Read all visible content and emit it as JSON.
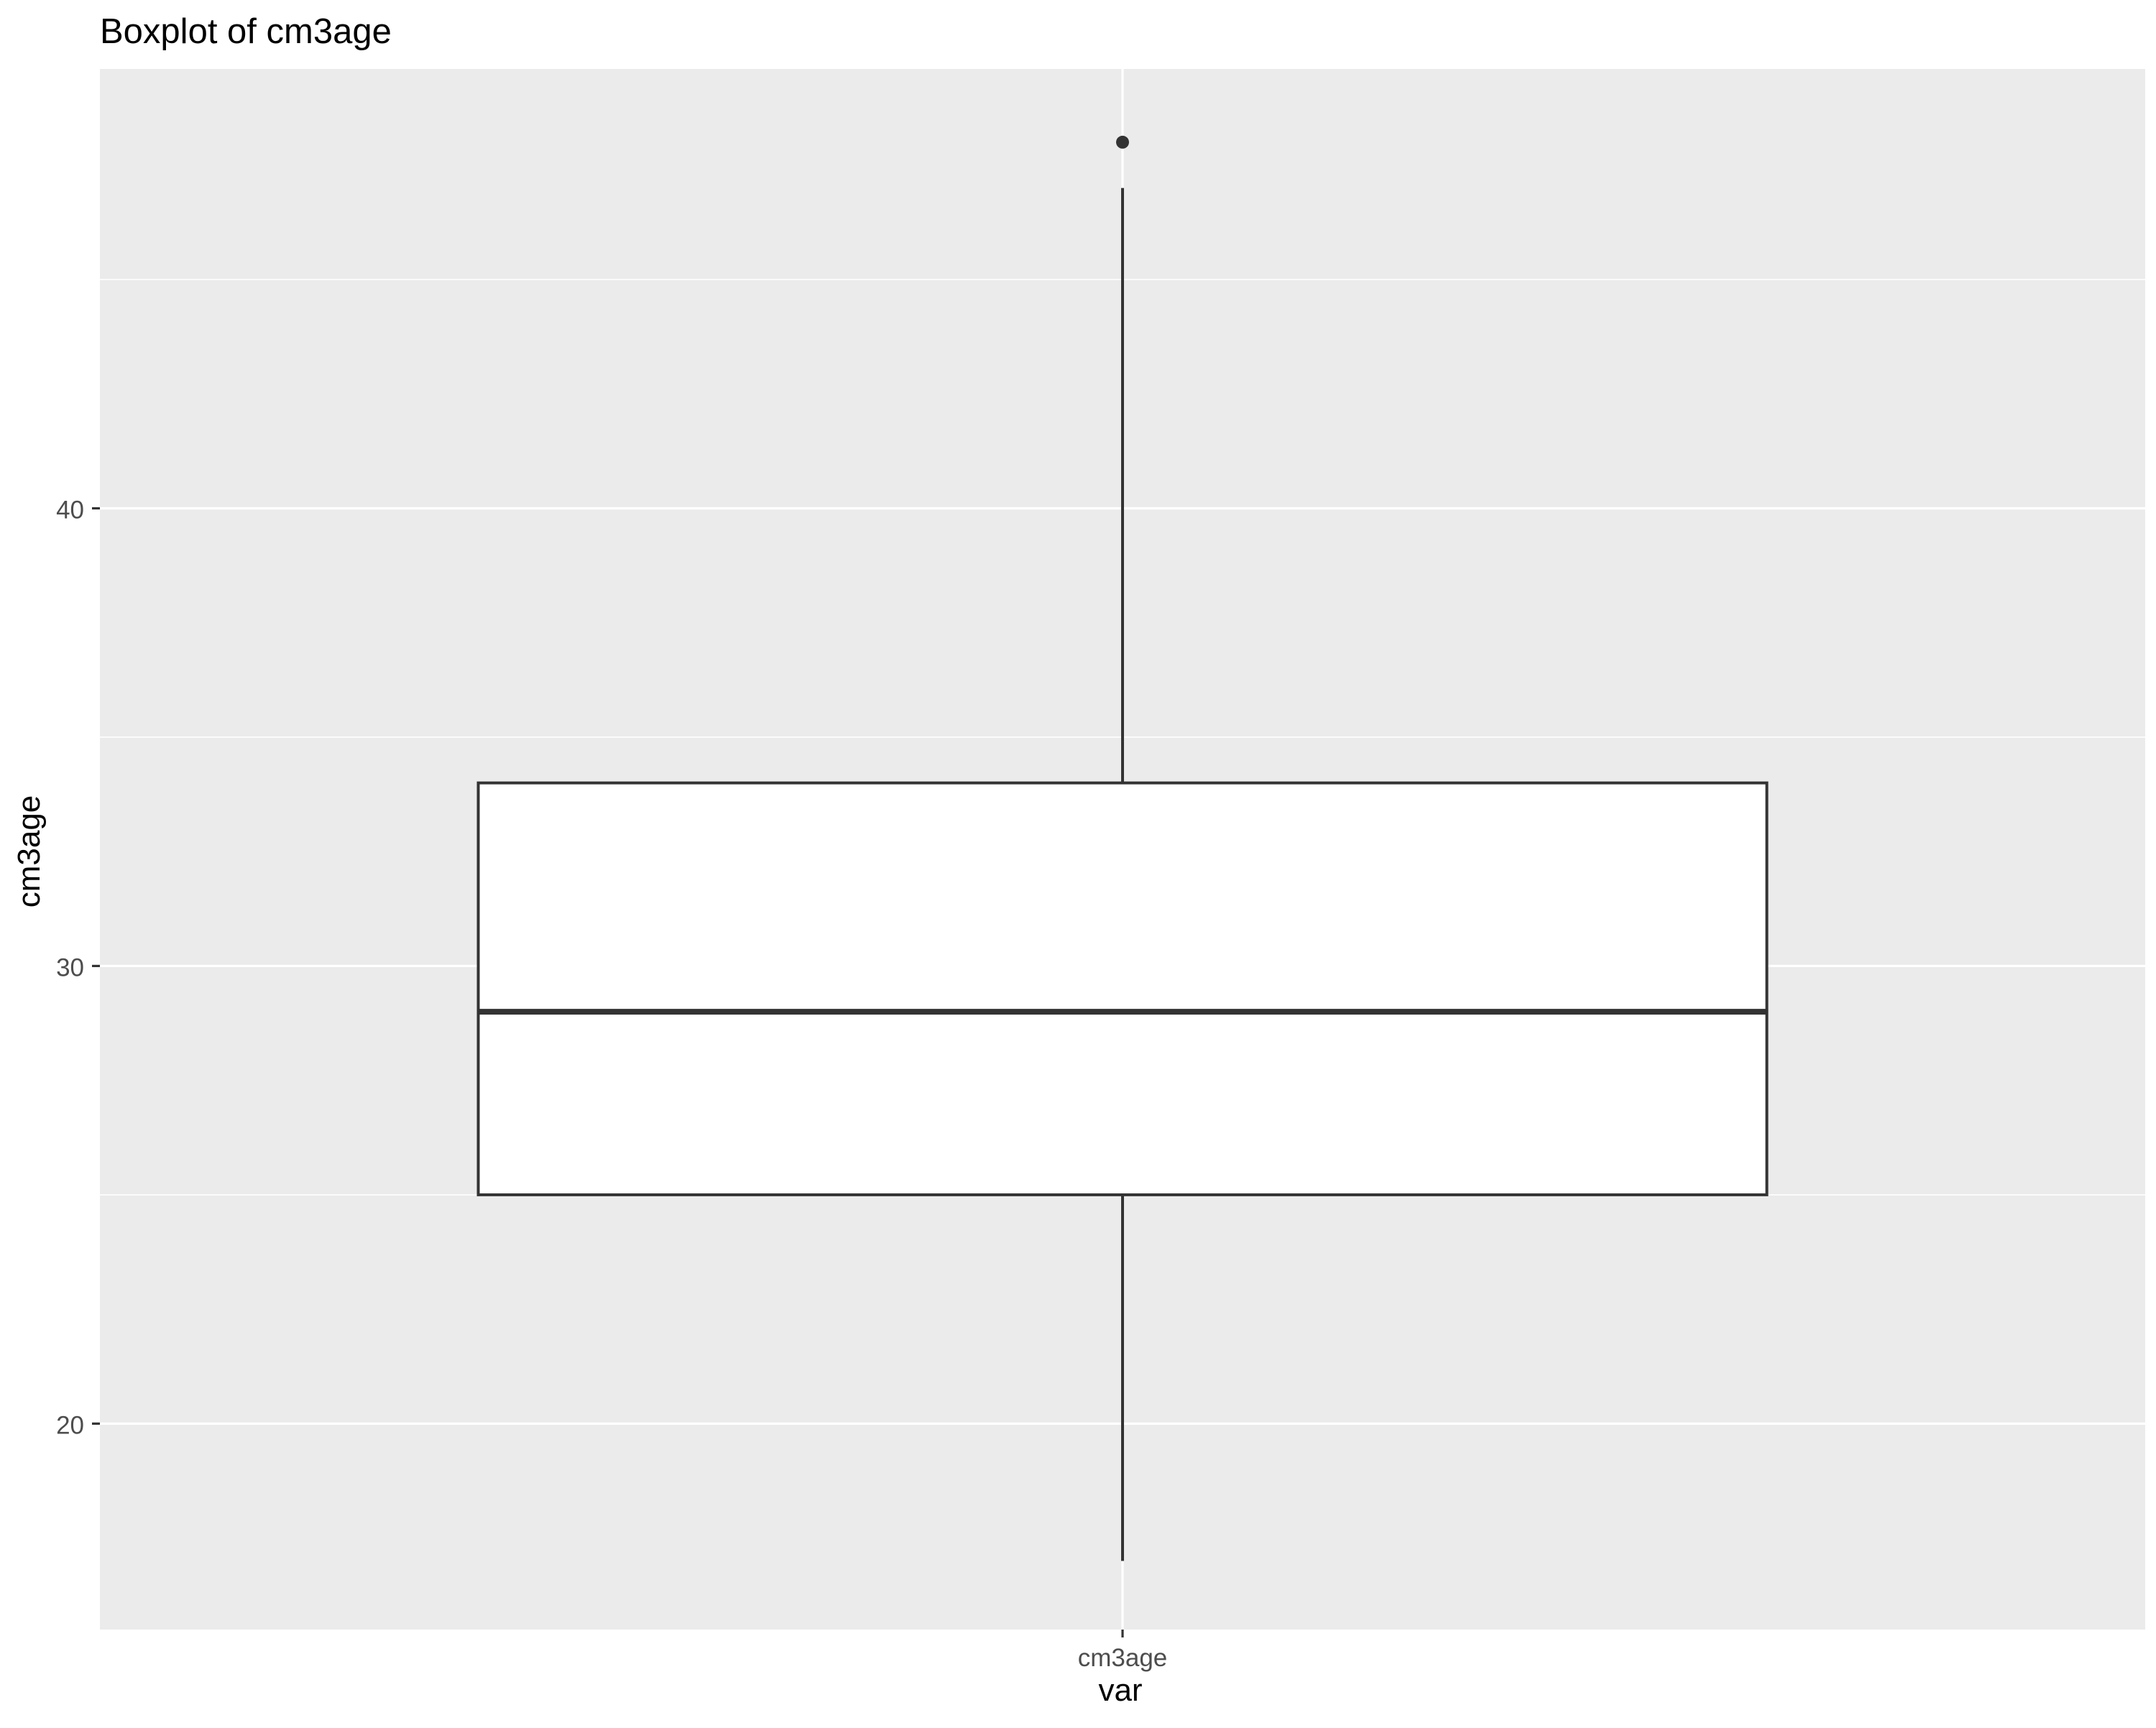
{
  "chart_data": {
    "type": "boxplot",
    "title": "Boxplot of cm3age",
    "xlabel": "var",
    "ylabel": "cm3age",
    "categories": [
      "cm3age"
    ],
    "y_ticks": [
      20,
      30,
      40
    ],
    "y_tick_labels": [
      "20",
      "30",
      "40"
    ],
    "ylim": [
      15.5,
      49.6
    ],
    "grid": true,
    "legend": "none",
    "boxes": [
      {
        "category": "cm3age",
        "lower_whisker": 17,
        "q1": 25,
        "median": 29,
        "q3": 34,
        "upper_whisker": 47,
        "outliers": [
          48
        ]
      }
    ],
    "colors": {
      "panel_background": "#ebebeb",
      "grid": "#ffffff",
      "box_fill": "#ffffff",
      "box_line": "#333333",
      "tick_text": "#4d4d4d",
      "title_text": "#000000"
    }
  }
}
